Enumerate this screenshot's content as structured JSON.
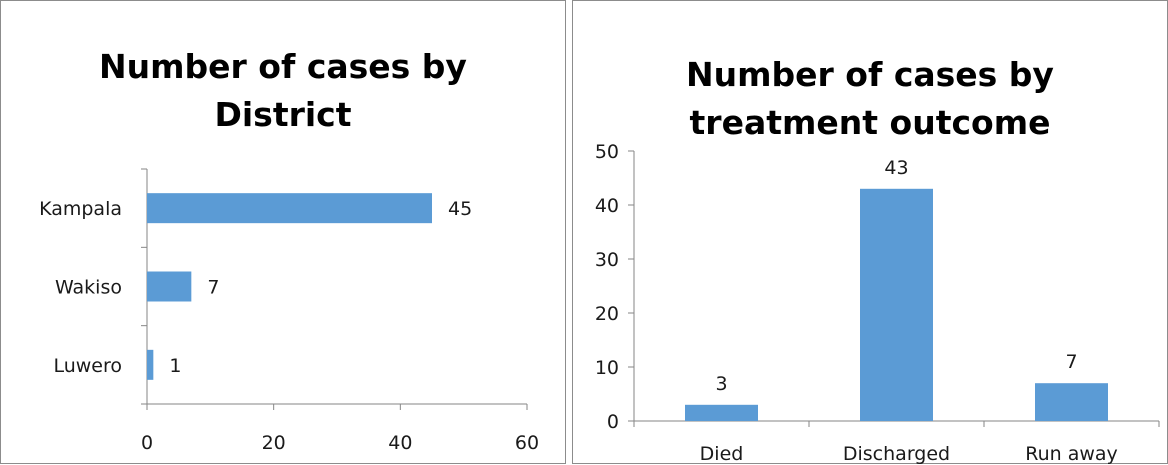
{
  "chart_data": [
    {
      "type": "bar",
      "orientation": "horizontal",
      "title_lines": [
        "Number of cases by",
        "District"
      ],
      "categories": [
        "Kampala",
        "Wakiso",
        "Luwero"
      ],
      "values": [
        45,
        7,
        1
      ],
      "value_labels": [
        "45",
        "7",
        "1"
      ],
      "xlim": [
        0,
        60
      ],
      "x_ticks": [
        "0",
        "20",
        "40",
        "60"
      ],
      "bar_color": "#5b9bd5",
      "grid": false,
      "legend": "none"
    },
    {
      "type": "bar",
      "orientation": "vertical",
      "title_lines": [
        "Number of cases by",
        "treatment outcome"
      ],
      "categories": [
        "Died",
        "Discharged",
        "Run away"
      ],
      "values": [
        3,
        43,
        7
      ],
      "value_labels": [
        "3",
        "43",
        "7"
      ],
      "ylim": [
        0,
        50
      ],
      "y_ticks": [
        "0",
        "10",
        "20",
        "30",
        "40",
        "50"
      ],
      "bar_color": "#5b9bd5",
      "grid": false,
      "legend": "none"
    }
  ]
}
